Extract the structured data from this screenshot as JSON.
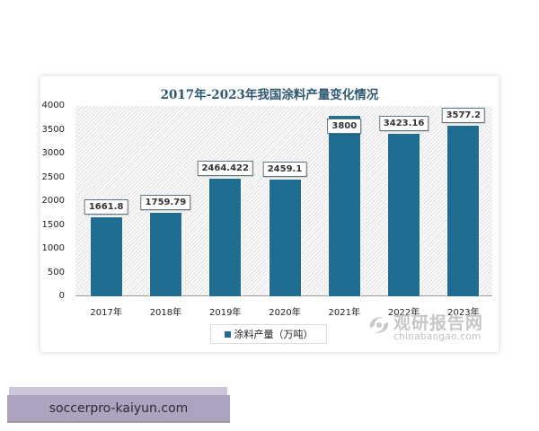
{
  "chart_data": {
    "type": "bar",
    "title": "2017年-2023年我国涂料产量变化情况",
    "categories": [
      "2017年",
      "2018年",
      "2019年",
      "2020年",
      "2021年",
      "2022年",
      "2023年"
    ],
    "series": [
      {
        "name": "涂料产量（万吨）",
        "values": [
          1661.8,
          1759.79,
          2464.422,
          2459.1,
          3800,
          3423.16,
          3577.2
        ],
        "color": "#1f6e92"
      }
    ],
    "value_labels": [
      "1661.8",
      "1759.79",
      "2464.422",
      "2459.1",
      "3800",
      "3423.16",
      "3577.2"
    ],
    "xlabel": "",
    "ylabel": "",
    "ylim": [
      0,
      4000
    ],
    "yticks": [
      "4000",
      "3500",
      "3000",
      "2500",
      "2000",
      "1500",
      "1000",
      "500",
      "0"
    ],
    "grid": false,
    "legend_position": "bottom"
  },
  "watermark": {
    "name_cn": "观研报告网",
    "domain": "chinabaogao.com"
  },
  "banner": {
    "text": "soccerpro-kaiyun.com"
  }
}
